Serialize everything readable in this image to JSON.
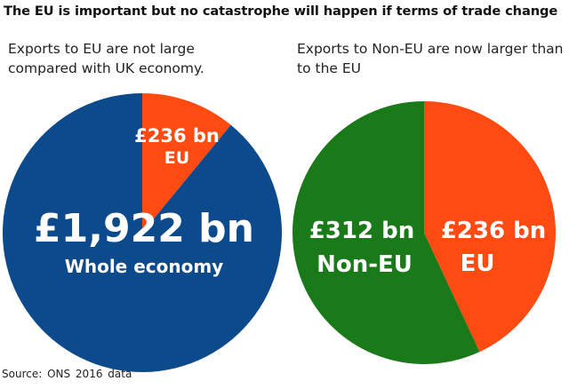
{
  "title": "The EU is important but no catastrophe will happen if terms of trade change",
  "source": "Source: ONS  2016  data",
  "chart_data": [
    {
      "type": "pie",
      "subtitle": "Exports to EU are not large compared with UK economy.",
      "slices": [
        {
          "name": "Whole economy",
          "value": 1922,
          "value_label": "£1,922 bn",
          "label": "Whole economy",
          "color": "#0d4a8b"
        },
        {
          "name": "EU",
          "value": 236,
          "value_label": "£236 bn",
          "label": "EU",
          "color": "#ff4a12"
        }
      ]
    },
    {
      "type": "pie",
      "subtitle": "Exports to Non-EU are now larger than to the EU",
      "slices": [
        {
          "name": "EU",
          "value": 236,
          "value_label": "£236 bn",
          "label": "EU",
          "color": "#ff4a12"
        },
        {
          "name": "Non-EU",
          "value": 312,
          "value_label": "£312 bn",
          "label": "Non-EU",
          "color": "#1a7a1a"
        }
      ]
    }
  ]
}
